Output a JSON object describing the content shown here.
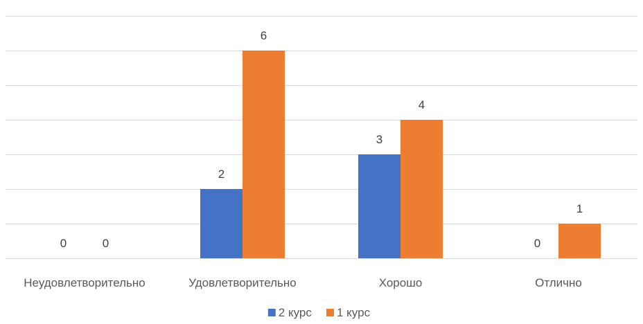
{
  "chart_data": {
    "type": "bar",
    "categories": [
      "Неудовлетворительно",
      "Удовлетворительно",
      "Хорошо",
      "Отлично"
    ],
    "series": [
      {
        "name": "2 курс",
        "values": [
          0,
          2,
          3,
          0
        ],
        "color": "#4472C4"
      },
      {
        "name": "1 курс",
        "values": [
          0,
          6,
          4,
          1
        ],
        "color": "#ED7D31"
      }
    ],
    "ylim": [
      0,
      7
    ],
    "grid": true,
    "legend_position": "bottom",
    "data_labels": true
  }
}
